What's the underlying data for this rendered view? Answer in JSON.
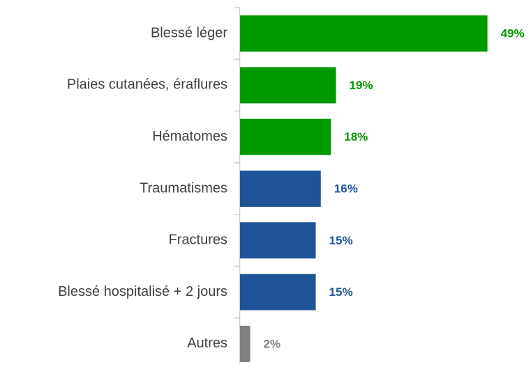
{
  "chart_data": {
    "type": "bar",
    "orientation": "horizontal",
    "categories": [
      "Blessé léger",
      "Plaies cutanées, éraflures",
      "Hématomes",
      "Traumatismes",
      "Fractures",
      "Blessé hospitalisé + 2 jours",
      "Autres"
    ],
    "values": [
      49,
      19,
      18,
      16,
      15,
      15,
      2
    ],
    "value_labels": [
      "49%",
      "19%",
      "18%",
      "16%",
      "15%",
      "15%",
      "2%"
    ],
    "colors": [
      "#009900",
      "#009900",
      "#009900",
      "#1f5596",
      "#1f5596",
      "#1f5596",
      "#808080"
    ],
    "xlim": [
      0,
      55
    ]
  }
}
